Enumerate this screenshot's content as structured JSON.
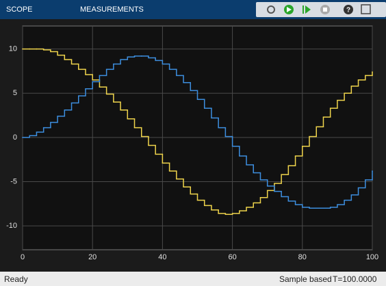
{
  "toolbar": {
    "tabs": [
      "SCOPE",
      "MEASUREMENTS"
    ]
  },
  "chart_data": {
    "type": "stairs",
    "x": [
      0,
      2,
      4,
      6,
      8,
      10,
      12,
      14,
      16,
      18,
      20,
      22,
      24,
      26,
      28,
      30,
      32,
      34,
      36,
      38,
      40,
      42,
      44,
      46,
      48,
      50,
      52,
      54,
      56,
      58,
      60,
      62,
      64,
      66,
      68,
      70,
      72,
      74,
      76,
      78,
      80,
      82,
      84,
      86,
      88,
      90,
      92,
      94,
      96,
      98,
      100
    ],
    "series": [
      {
        "color": "#f0d54c",
        "values": [
          10,
          10,
          10,
          9.9,
          9.7,
          9.3,
          8.8,
          8.3,
          7.7,
          7.1,
          6.5,
          5.7,
          4.9,
          4.0,
          3.1,
          2.1,
          1.1,
          0.1,
          -0.9,
          -1.9,
          -2.9,
          -3.8,
          -4.7,
          -5.6,
          -6.4,
          -7.1,
          -7.7,
          -8.2,
          -8.6,
          -8.7,
          -8.6,
          -8.3,
          -7.9,
          -7.4,
          -6.8,
          -6.0,
          -5.2,
          -4.2,
          -3.2,
          -2.1,
          -1.0,
          0.1,
          1.2,
          2.3,
          3.3,
          4.2,
          5.0,
          5.8,
          6.5,
          7.0,
          7.4
        ]
      },
      {
        "color": "#3d8fe0",
        "values": [
          0,
          0.2,
          0.6,
          1.1,
          1.7,
          2.4,
          3.1,
          3.9,
          4.7,
          5.5,
          6.3,
          7.0,
          7.7,
          8.3,
          8.8,
          9.1,
          9.2,
          9.2,
          9.0,
          8.7,
          8.3,
          7.7,
          7.0,
          6.2,
          5.3,
          4.3,
          3.3,
          2.2,
          1.1,
          0.1,
          -1.0,
          -2.1,
          -3.1,
          -4.0,
          -4.8,
          -5.5,
          -6.1,
          -6.7,
          -7.2,
          -7.6,
          -7.9,
          -8.0,
          -8.0,
          -8.0,
          -7.9,
          -7.6,
          -7.1,
          -6.5,
          -5.7,
          -4.8,
          -3.8
        ]
      }
    ],
    "xlim": [
      0,
      100
    ],
    "xticks": [
      0,
      20,
      40,
      60,
      80,
      100
    ],
    "ylim": [
      -12.7,
      12.6
    ],
    "yticks": [
      -10,
      -5,
      0,
      5,
      10
    ],
    "grid": true
  },
  "status": {
    "left": "Ready",
    "mode": "Sample based",
    "time": "T=100.0000"
  }
}
